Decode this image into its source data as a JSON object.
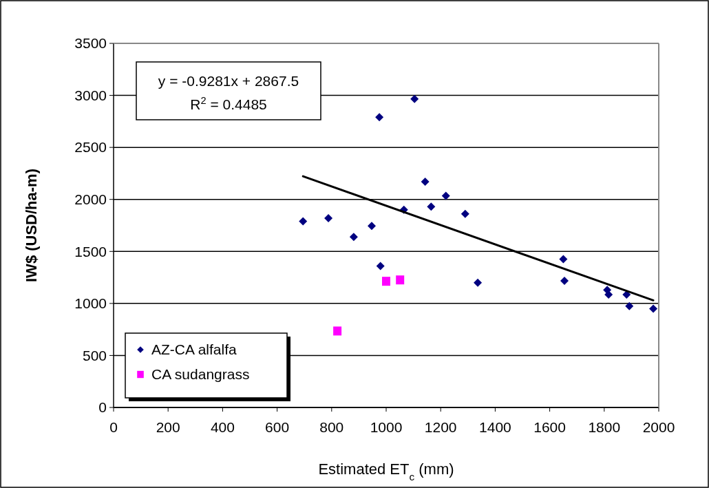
{
  "chart_data": {
    "type": "scatter",
    "xlabel": "Estimated ET$_{c}$ (mm)",
    "ylabel": "IW$ (USD/ha-m)",
    "xlim": [
      0,
      2000
    ],
    "xticks": [
      0,
      200,
      400,
      600,
      800,
      1000,
      1200,
      1400,
      1600,
      1800,
      2000
    ],
    "ylim": [
      0,
      3500
    ],
    "yticks": [
      0,
      500,
      1000,
      1500,
      2000,
      2500,
      3000,
      3500
    ],
    "grid": "y",
    "legend": "bottom left",
    "annotations": [
      "y = -0.9281x + 2867.5",
      "R$^{2}$ = 0.4485"
    ],
    "series": [
      {
        "name": "AZ-CA alfalfa",
        "color": "#000080",
        "marker": "diamond",
        "x": [
          695,
          788,
          881,
          947,
          975,
          1104,
          979,
          1065,
          1143,
          1165,
          1219,
          1290,
          1336,
          1650,
          1654,
          1811,
          1816,
          1882,
          1892,
          1980
        ],
        "values": [
          1790,
          1820,
          1640,
          1745,
          2790,
          2965,
          1360,
          1900,
          2170,
          1930,
          2035,
          1860,
          1200,
          1425,
          1218,
          1130,
          1085,
          1085,
          975,
          950
        ]
      },
      {
        "name": "CA sudangrass",
        "color": "#ff00ff",
        "marker": "square",
        "x": [
          1000,
          1051,
          821
        ],
        "values": [
          1213,
          1226,
          735
        ]
      },
      {
        "type": "line",
        "color": "#000000",
        "line_style": "solid",
        "x": [
          695,
          1980
        ],
        "values": [
          2222,
          1030
        ]
      }
    ]
  }
}
